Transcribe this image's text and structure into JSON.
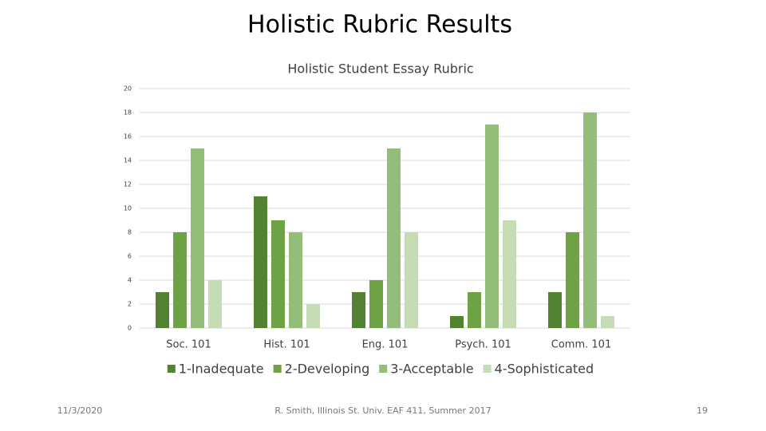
{
  "slide": {
    "title": "Holistic Rubric Results",
    "date": "11/3/2020",
    "footer": "R. Smith, Illinois St. Univ. EAF 411, Summer 2017",
    "page_number": "19"
  },
  "chart_data": {
    "type": "bar",
    "title": "Holistic Student Essay Rubric",
    "categories": [
      "Soc. 101",
      "Hist. 101",
      "Eng. 101",
      "Psych. 101",
      "Comm. 101"
    ],
    "series": [
      {
        "name": "1-Inadequate",
        "color": "#548235",
        "values": [
          3,
          11,
          3,
          1,
          3
        ]
      },
      {
        "name": "2-Developing",
        "color": "#6fa244",
        "values": [
          8,
          9,
          4,
          3,
          8
        ]
      },
      {
        "name": "3-Acceptable",
        "color": "#93bd78",
        "values": [
          15,
          8,
          15,
          17,
          18
        ]
      },
      {
        "name": "4-Sophisticated",
        "color": "#c5dcb5",
        "values": [
          4,
          2,
          8,
          9,
          1
        ]
      }
    ],
    "ylim": [
      0,
      20
    ],
    "yticks": [
      0,
      2,
      4,
      6,
      8,
      10,
      12,
      14,
      16,
      18,
      20
    ],
    "grid": true,
    "legend": "bottom"
  }
}
